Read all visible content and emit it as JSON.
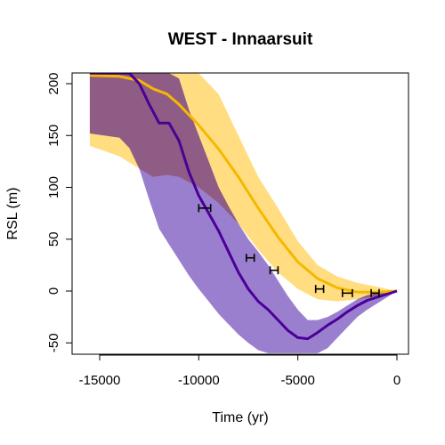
{
  "chart_data": {
    "type": "line",
    "title": "WEST -  Innaarsuit",
    "xlabel": "Time (yr)",
    "ylabel": "RSL (m)",
    "xlim": [
      -15500,
      0
    ],
    "ylim": [
      -60,
      210
    ],
    "xticks": [
      -15000,
      -10000,
      -5000,
      0
    ],
    "xtick_labels": [
      "-15000",
      "-10000",
      "-5000",
      "0"
    ],
    "yticks": [
      -50,
      0,
      50,
      100,
      150,
      200
    ],
    "ytick_labels": [
      "-50",
      "0",
      "50",
      "100",
      "150",
      "200"
    ],
    "grid": false,
    "legend": "none",
    "colors": {
      "purple_line": "#4b0096",
      "purple_band": "#9b7fcf",
      "yellow_line": "#f5b800",
      "yellow_band": "#ffdd80",
      "overlap_band": "#8e5c84",
      "error_bars": "#000000"
    },
    "series": [
      {
        "color": "#f5b800",
        "x": [
          -15500,
          -14000,
          -13000,
          -12300,
          -11600,
          -11000,
          -10000,
          -9000,
          -8000,
          -7000,
          -6000,
          -5000,
          -4000,
          -3000,
          -2000,
          -1000,
          0
        ],
        "y": [
          208,
          207,
          203,
          195,
          190,
          180,
          160,
          137,
          110,
          80,
          52,
          28,
          12,
          3,
          -1,
          -1,
          0
        ],
        "lower": [
          140,
          130,
          118,
          110,
          112,
          110,
          100,
          85,
          65,
          40,
          18,
          2,
          -8,
          -10,
          -8,
          -5,
          0
        ],
        "upper": [
          210,
          210,
          210,
          210,
          210,
          210,
          210,
          190,
          150,
          110,
          80,
          48,
          25,
          14,
          8,
          4,
          0
        ]
      },
      {
        "color": "#4b0096",
        "x": [
          -15500,
          -14000,
          -13500,
          -13000,
          -12500,
          -12000,
          -11500,
          -11000,
          -10500,
          -10000,
          -9500,
          -9000,
          -8500,
          -8000,
          -7500,
          -7000,
          -6500,
          -6000,
          -5500,
          -5000,
          -4500,
          -4000,
          -3500,
          -3000,
          -2500,
          -2000,
          -1500,
          -1000,
          -500,
          0
        ],
        "y": [
          210,
          210,
          210,
          200,
          180,
          162,
          162,
          145,
          115,
          92,
          75,
          58,
          38,
          18,
          2,
          -10,
          -18,
          -28,
          -38,
          -45,
          -46,
          -40,
          -33,
          -27,
          -20,
          -14,
          -9,
          -6,
          -3,
          0
        ],
        "lower": [
          152,
          148,
          138,
          118,
          88,
          60,
          45,
          30,
          15,
          2,
          -10,
          -22,
          -32,
          -42,
          -50,
          -57,
          -60,
          -60,
          -60,
          -60,
          -60,
          -60,
          -55,
          -45,
          -35,
          -25,
          -18,
          -12,
          -6,
          0
        ],
        "upper": [
          210,
          210,
          210,
          210,
          210,
          210,
          210,
          205,
          175,
          150,
          125,
          100,
          82,
          65,
          50,
          38,
          25,
          10,
          -5,
          -18,
          -28,
          -28,
          -25,
          -20,
          -14,
          -8,
          -4,
          -2,
          -1,
          0
        ]
      }
    ],
    "observations": [
      {
        "x": -9700,
        "y": 80,
        "xerr": 300,
        "yerr": 3
      },
      {
        "x": -7400,
        "y": 32,
        "xerr": 200,
        "yerr": 3
      },
      {
        "x": -6200,
        "y": 20,
        "xerr": 200,
        "yerr": 3
      },
      {
        "x": -3900,
        "y": 2,
        "xerr": 200,
        "yerr": 3
      },
      {
        "x": -2500,
        "y": -2,
        "xerr": 250,
        "yerr": 3
      },
      {
        "x": -1100,
        "y": -2,
        "xerr": 200,
        "yerr": 3
      }
    ]
  }
}
